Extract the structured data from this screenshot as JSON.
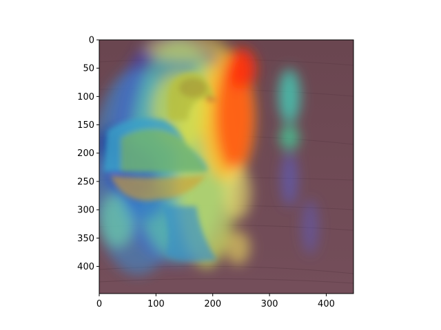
{
  "chart_data": {
    "type": "heatmap",
    "title": "",
    "xlabel": "",
    "ylabel": "",
    "xlim": [
      0,
      448
    ],
    "ylim": [
      448,
      0
    ],
    "xticks": [
      0,
      100,
      200,
      300,
      400
    ],
    "yticks": [
      0,
      50,
      100,
      150,
      200,
      250,
      300,
      350,
      400
    ],
    "xtick_labels": [
      "0",
      "100",
      "200",
      "300",
      "400"
    ],
    "ytick_labels": [
      "0",
      "50",
      "100",
      "150",
      "200",
      "250",
      "300",
      "350",
      "400"
    ],
    "grid": false,
    "colormap": "jet",
    "image_description_color": "#6d4a55",
    "hotspots": [
      {
        "x": 240,
        "y": 140,
        "intensity": 1.0
      },
      {
        "x": 245,
        "y": 60,
        "intensity": 0.9
      },
      {
        "x": 175,
        "y": 120,
        "intensity": 0.6
      },
      {
        "x": 240,
        "y": 270,
        "intensity": 0.55
      },
      {
        "x": 245,
        "y": 365,
        "intensity": 0.5
      },
      {
        "x": 50,
        "y": 250,
        "intensity": 0.45
      },
      {
        "x": 80,
        "y": 340,
        "intensity": 0.45
      },
      {
        "x": 335,
        "y": 175,
        "intensity": 0.4
      },
      {
        "x": 335,
        "y": 110,
        "intensity": 0.35
      }
    ]
  }
}
